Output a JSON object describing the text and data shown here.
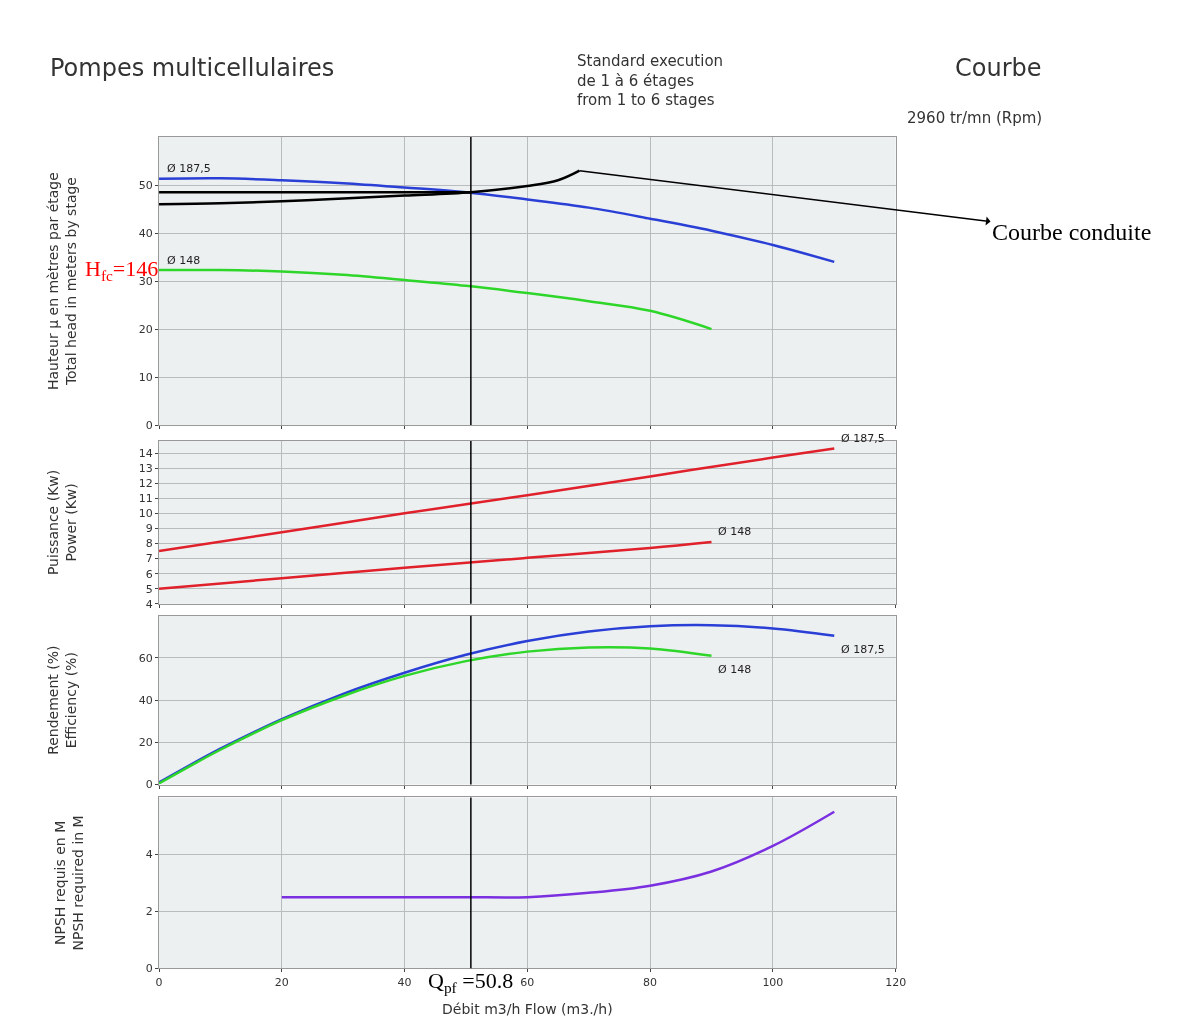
{
  "chart_data": [
    {
      "type": "line",
      "title": "Pompes multicellulaires",
      "subtitle": "Standard execution\nde 1 à 6 étages\nfrom 1 to 6 stages",
      "annotations": [
        "Courbe",
        "2960 tr/mn (Rpm)",
        "H$_{fc}$=146",
        "Courbe conduite"
      ],
      "ylabel": "Hauteur µ en mètres par étage\nTotal head in meters by stage",
      "xlim": [
        0,
        120
      ],
      "xticks": [
        0,
        20,
        40,
        60,
        80,
        100,
        120
      ],
      "ylim": [
        0,
        60
      ],
      "yticks": [
        0,
        10,
        20,
        30,
        40,
        50
      ],
      "grid": true,
      "tick_labels": "y",
      "series": [
        {
          "name": "Ø 187,5",
          "color": "#2a3fd6",
          "x": [
            0,
            10,
            20,
            30,
            40,
            50,
            60,
            70,
            80,
            90,
            100,
            110
          ],
          "values": [
            51.3,
            51.4,
            51,
            50.4,
            49.5,
            48.5,
            47,
            45.3,
            43,
            40.5,
            37.5,
            34
          ]
        },
        {
          "name": "Ø 148",
          "color": "#2ed62a",
          "x": [
            0,
            10,
            20,
            30,
            40,
            50,
            60,
            70,
            80,
            90
          ],
          "values": [
            32.3,
            32.3,
            32,
            31.3,
            30.2,
            29,
            27.5,
            25.8,
            23.8,
            20
          ]
        },
        {
          "color": "#000000",
          "x": [
            0,
            10,
            20,
            30,
            40,
            50.8,
            60,
            65,
            68.5
          ],
          "values": [
            46,
            46.2,
            46.6,
            47.2,
            47.8,
            48.5,
            49.8,
            51,
            53
          ]
        },
        {
          "color": "#000000",
          "x": [
            0,
            50.8
          ],
          "values": [
            48.5,
            48.5
          ]
        }
      ],
      "ref_lines": [
        {
          "axis": "x",
          "value": 50.8,
          "color": "#000000"
        }
      ]
    },
    {
      "type": "line",
      "ylabel": "Puissance (Kw)\nPower (Kw)",
      "xlim": [
        0,
        120
      ],
      "xticks": [
        0,
        20,
        40,
        60,
        80,
        100,
        120
      ],
      "ylim": [
        4,
        14.8
      ],
      "yticks": [
        4,
        5,
        6,
        7,
        8,
        9,
        10,
        11,
        12,
        13,
        14
      ],
      "grid": true,
      "tick_labels": "y",
      "series": [
        {
          "name": "Ø 187,5",
          "color": "#e0202a",
          "x": [
            0,
            20,
            40,
            60,
            80,
            100,
            110
          ],
          "values": [
            7.5,
            8.75,
            10,
            11.2,
            12.45,
            13.7,
            14.3
          ]
        },
        {
          "name": "Ø 148",
          "color": "#e0202a",
          "x": [
            0,
            20,
            40,
            60,
            80,
            90
          ],
          "values": [
            5,
            5.7,
            6.4,
            7.05,
            7.7,
            8.1
          ]
        }
      ],
      "ref_lines": [
        {
          "axis": "x",
          "value": 50.8,
          "color": "#000000"
        }
      ]
    },
    {
      "type": "line",
      "ylabel": "Rendement (%)\nEfficiency (%)",
      "xlim": [
        0,
        120
      ],
      "xticks": [
        0,
        20,
        40,
        60,
        80,
        100,
        120
      ],
      "ylim": [
        0,
        80
      ],
      "yticks": [
        0,
        20,
        40,
        60
      ],
      "grid": true,
      "tick_labels": "y",
      "series": [
        {
          "name": "Ø 187,5",
          "color": "#2a3fd6",
          "x": [
            0,
            10,
            20,
            30,
            40,
            50,
            60,
            70,
            80,
            90,
            100,
            110
          ],
          "values": [
            1,
            17,
            31,
            43,
            53,
            61.5,
            68,
            72.5,
            75,
            75.5,
            74,
            70.5
          ]
        },
        {
          "name": "Ø 148",
          "color": "#2ed62a",
          "x": [
            0,
            10,
            20,
            30,
            40,
            50,
            60,
            70,
            80,
            90
          ],
          "values": [
            0.5,
            16.5,
            30.5,
            42,
            51.5,
            58.5,
            63,
            65,
            64.5,
            61
          ]
        }
      ],
      "ref_lines": [
        {
          "axis": "x",
          "value": 50.8,
          "color": "#000000"
        }
      ]
    },
    {
      "type": "line",
      "ylabel": "NPSH requis en M\nNPSH required in M",
      "xlabel": "Débit m3/h Flow (m3./h)",
      "xlim": [
        0,
        120
      ],
      "xticks": [
        0,
        20,
        40,
        60,
        80,
        100,
        120
      ],
      "ylim": [
        0,
        6
      ],
      "yticks": [
        0,
        2,
        4
      ],
      "grid": true,
      "series": [
        {
          "color": "#7a2fe0",
          "x": [
            20,
            30,
            40,
            50,
            60,
            70,
            80,
            90,
            100,
            110
          ],
          "values": [
            2.5,
            2.5,
            2.5,
            2.5,
            2.5,
            2.65,
            2.9,
            3.4,
            4.3,
            5.5
          ]
        }
      ],
      "ref_lines": [
        {
          "axis": "x",
          "value": 50.8,
          "color": "#000000",
          "label": "Q$_{pf}$ =50.8"
        }
      ]
    }
  ]
}
